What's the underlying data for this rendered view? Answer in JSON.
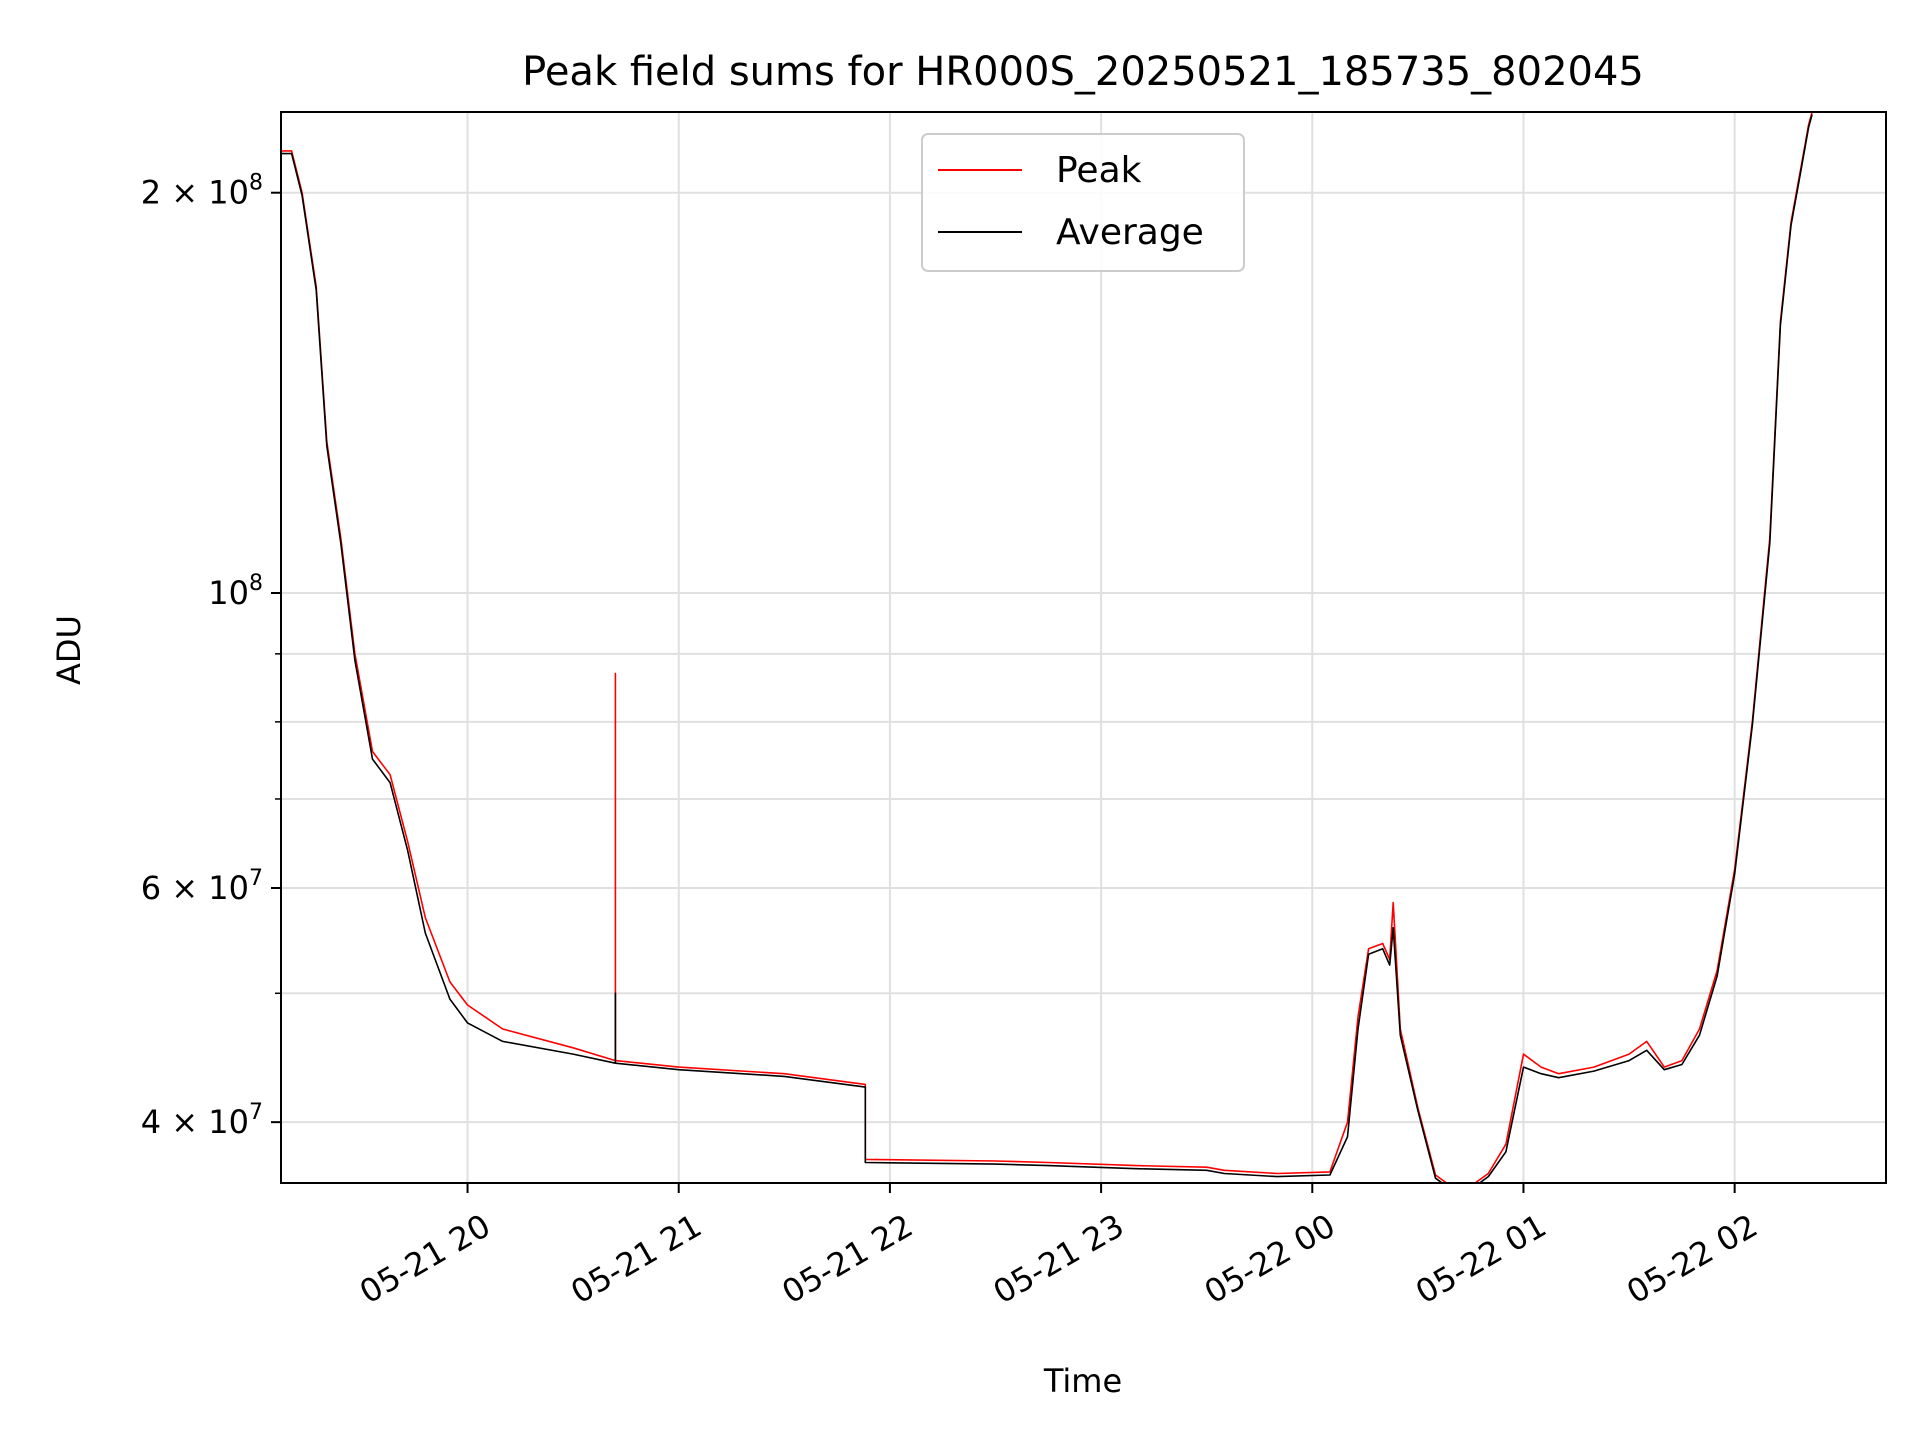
{
  "chart_data": {
    "type": "line",
    "title": "Peak field sums for HR000S_20250521_185735_802045",
    "xlabel": "Time",
    "ylabel": "ADU",
    "y_scale": "log",
    "ylim": [
      36000000,
      230000000
    ],
    "xlim": [
      "2025-05-21 19:07",
      "2025-05-22 02:43"
    ],
    "grid": true,
    "legend_position": "top-center",
    "x_ticks": [
      {
        "t": "2025-05-21 20:00",
        "label": "05-21 20"
      },
      {
        "t": "2025-05-21 21:00",
        "label": "05-21 21"
      },
      {
        "t": "2025-05-21 22:00",
        "label": "05-21 22"
      },
      {
        "t": "2025-05-21 23:00",
        "label": "05-21 23"
      },
      {
        "t": "2025-05-22 00:00",
        "label": "05-22 00"
      },
      {
        "t": "2025-05-22 01:00",
        "label": "05-22 01"
      },
      {
        "t": "2025-05-22 02:00",
        "label": "05-22 02"
      }
    ],
    "y_major_ticks": [
      {
        "value": 40000000,
        "base": "4",
        "sep": "×",
        "mant": "10",
        "exp": "7"
      },
      {
        "value": 60000000,
        "base": "6",
        "sep": "×",
        "mant": "10",
        "exp": "7"
      },
      {
        "value": 100000000,
        "base": "",
        "sep": "",
        "mant": "10",
        "exp": "8"
      },
      {
        "value": 200000000,
        "base": "2",
        "sep": "×",
        "mant": "10",
        "exp": "8"
      }
    ],
    "y_minor_ticks": [
      50000000,
      70000000,
      80000000,
      90000000
    ],
    "series": [
      {
        "name": "Peak",
        "color": "#ff0000",
        "x": [
          "2025-05-21 19:07",
          "2025-05-21 19:10",
          "2025-05-21 19:13",
          "2025-05-21 19:17",
          "2025-05-21 19:20",
          "2025-05-21 19:24",
          "2025-05-21 19:28",
          "2025-05-21 19:33",
          "2025-05-21 19:38",
          "2025-05-21 19:43",
          "2025-05-21 19:48",
          "2025-05-21 19:55",
          "2025-05-21 20:00",
          "2025-05-21 20:10",
          "2025-05-21 20:30",
          "2025-05-21 20:42",
          "2025-05-21 20:42",
          "2025-05-21 20:42",
          "2025-05-21 21:00",
          "2025-05-21 21:30",
          "2025-05-21 21:53",
          "2025-05-21 21:53",
          "2025-05-21 22:30",
          "2025-05-21 22:45",
          "2025-05-21 23:10",
          "2025-05-21 23:30",
          "2025-05-21 23:35",
          "2025-05-21 23:50",
          "2025-05-22 00:05",
          "2025-05-22 00:10",
          "2025-05-22 00:13",
          "2025-05-22 00:16",
          "2025-05-22 00:20",
          "2025-05-22 00:22",
          "2025-05-22 00:23",
          "2025-05-22 00:25",
          "2025-05-22 00:30",
          "2025-05-22 00:35",
          "2025-05-22 00:40",
          "2025-05-22 00:45",
          "2025-05-22 00:50",
          "2025-05-22 00:55",
          "2025-05-22 01:00",
          "2025-05-22 01:05",
          "2025-05-22 01:10",
          "2025-05-22 01:20",
          "2025-05-22 01:30",
          "2025-05-22 01:35",
          "2025-05-22 01:40",
          "2025-05-22 01:45",
          "2025-05-22 01:50",
          "2025-05-22 01:55",
          "2025-05-22 02:00",
          "2025-05-22 02:05",
          "2025-05-22 02:10",
          "2025-05-22 02:13",
          "2025-05-22 02:16",
          "2025-05-22 02:19",
          "2025-05-22 02:21",
          "2025-05-22 02:22"
        ],
        "y": [
          215000000,
          215000000,
          200000000,
          170000000,
          130000000,
          110000000,
          90000000,
          76000000,
          73000000,
          65000000,
          57000000,
          51000000,
          49000000,
          47000000,
          45500000,
          44500000,
          87000000,
          44500000,
          44000000,
          43500000,
          42700000,
          37500000,
          37400000,
          37300000,
          37100000,
          37000000,
          36800000,
          36600000,
          36700000,
          40000000,
          48000000,
          54000000,
          54500000,
          53000000,
          58500000,
          47000000,
          41000000,
          36500000,
          35700000,
          35800000,
          36600000,
          38500000,
          45000000,
          44000000,
          43500000,
          44000000,
          45000000,
          46000000,
          44000000,
          44500000,
          47000000,
          52000000,
          62000000,
          80000000,
          110000000,
          160000000,
          190000000,
          210000000,
          225000000,
          230000000
        ]
      },
      {
        "name": "Average",
        "color": "#000000",
        "x": [
          "2025-05-21 19:07",
          "2025-05-21 19:10",
          "2025-05-21 19:13",
          "2025-05-21 19:17",
          "2025-05-21 19:20",
          "2025-05-21 19:24",
          "2025-05-21 19:28",
          "2025-05-21 19:33",
          "2025-05-21 19:38",
          "2025-05-21 19:43",
          "2025-05-21 19:48",
          "2025-05-21 19:55",
          "2025-05-21 20:00",
          "2025-05-21 20:10",
          "2025-05-21 20:30",
          "2025-05-21 20:42",
          "2025-05-21 20:42",
          "2025-05-21 20:42",
          "2025-05-21 21:00",
          "2025-05-21 21:30",
          "2025-05-21 21:53",
          "2025-05-21 21:53",
          "2025-05-21 22:30",
          "2025-05-21 22:45",
          "2025-05-21 23:10",
          "2025-05-21 23:30",
          "2025-05-21 23:35",
          "2025-05-21 23:50",
          "2025-05-22 00:05",
          "2025-05-22 00:10",
          "2025-05-22 00:13",
          "2025-05-22 00:16",
          "2025-05-22 00:20",
          "2025-05-22 00:22",
          "2025-05-22 00:23",
          "2025-05-22 00:25",
          "2025-05-22 00:30",
          "2025-05-22 00:35",
          "2025-05-22 00:40",
          "2025-05-22 00:45",
          "2025-05-22 00:50",
          "2025-05-22 00:55",
          "2025-05-22 01:00",
          "2025-05-22 01:05",
          "2025-05-22 01:10",
          "2025-05-22 01:20",
          "2025-05-22 01:30",
          "2025-05-22 01:35",
          "2025-05-22 01:40",
          "2025-05-22 01:45",
          "2025-05-22 01:50",
          "2025-05-22 01:55",
          "2025-05-22 02:00",
          "2025-05-22 02:05",
          "2025-05-22 02:10",
          "2025-05-22 02:13",
          "2025-05-22 02:16",
          "2025-05-22 02:19",
          "2025-05-22 02:21",
          "2025-05-22 02:22"
        ],
        "y": [
          214000000,
          214000000,
          199000000,
          169000000,
          129000000,
          109000000,
          89000000,
          75000000,
          72000000,
          64000000,
          55500000,
          49500000,
          47500000,
          46000000,
          45000000,
          44300000,
          50000000,
          44300000,
          43800000,
          43300000,
          42500000,
          37300000,
          37200000,
          37100000,
          36900000,
          36800000,
          36600000,
          36400000,
          36500000,
          39000000,
          47000000,
          53500000,
          54000000,
          52500000,
          56000000,
          46500000,
          40800000,
          36300000,
          35500000,
          35600000,
          36400000,
          38000000,
          44000000,
          43500000,
          43200000,
          43700000,
          44500000,
          45300000,
          43800000,
          44200000,
          46500000,
          51500000,
          61500000,
          79500000,
          109000000,
          159000000,
          189000000,
          209000000,
          224000000,
          229000000
        ]
      }
    ]
  }
}
